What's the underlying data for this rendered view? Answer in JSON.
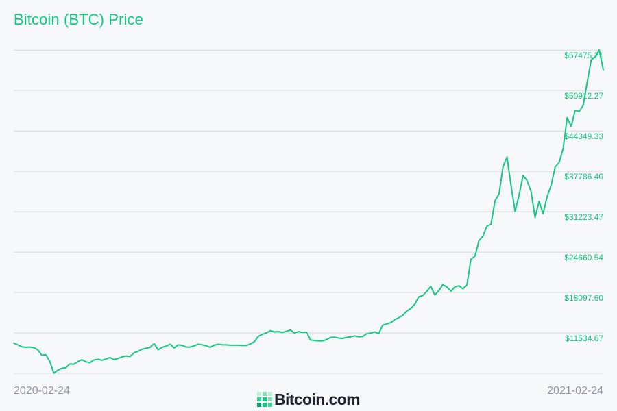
{
  "title": "Bitcoin (BTC) Price",
  "brand": {
    "name": "Bitcoin.com",
    "logo_icon": "bitcoin-com-grid-logo-icon"
  },
  "colors": {
    "accent": "#10c882",
    "line": "#16c784",
    "grid": "#d4d7dc",
    "date_text": "#8e96a3",
    "brand_text": "#1e2331",
    "background": "#f7f8fa"
  },
  "chart_data": {
    "type": "line",
    "title": "Bitcoin (BTC) Price",
    "x_start": "2020-02-24",
    "x_end": "2021-02-24",
    "x_tick_labels": [
      "2020-02-24",
      "2021-02-24"
    ],
    "y_tick_labels": [
      "$57475.21",
      "$50912.27",
      "$44349.33",
      "$37786.40",
      "$31223.47",
      "$24660.54",
      "$18097.60",
      "$11534.67"
    ],
    "y_ticks": [
      57475.21,
      50912.27,
      44349.33,
      37786.4,
      31223.47,
      24660.54,
      18097.6,
      11534.67
    ],
    "ylim": [
      4971.73,
      58500
    ],
    "grid": "horizontal",
    "series": [
      {
        "values": [
          9900,
          9600,
          9300,
          9200,
          9250,
          9150,
          8800,
          7900,
          8000,
          6900,
          4990,
          5500,
          5800,
          5900,
          6500,
          6450,
          6900,
          7200,
          6850,
          6700,
          7150,
          7250,
          7100,
          7300,
          7550,
          7200,
          7400,
          7650,
          7800,
          7700,
          8300,
          8550,
          8900,
          9050,
          9200,
          9800,
          8800,
          9200,
          9400,
          9700,
          9100,
          9600,
          9500,
          9250,
          9250,
          9450,
          9700,
          9600,
          9450,
          9200,
          9550,
          9700,
          9600,
          9600,
          9550,
          9550,
          9550,
          9500,
          9500,
          9750,
          10100,
          11000,
          11300,
          11550,
          11900,
          11700,
          11750,
          11600,
          11800,
          12000,
          11500,
          11750,
          11600,
          11650,
          10400,
          10300,
          10250,
          10250,
          10450,
          10800,
          10850,
          10700,
          10650,
          10800,
          10900,
          11050,
          10900,
          10950,
          11400,
          11500,
          11700,
          11400,
          12800,
          13000,
          13200,
          13700,
          14000,
          14400,
          15100,
          15500,
          16200,
          17400,
          17600,
          18300,
          19100,
          17700,
          18400,
          19400,
          19000,
          18300,
          19000,
          19200,
          18700,
          19300,
          23500,
          24000,
          26500,
          27300,
          28900,
          29200,
          33000,
          34100,
          38500,
          40100,
          35500,
          31300,
          33900,
          37100,
          36300,
          34500,
          30300,
          32900,
          30900,
          33700,
          35500,
          38500,
          39200,
          41500,
          46500,
          45100,
          47700,
          47500,
          48500,
          52300,
          55900,
          56400,
          57500,
          54300
        ]
      }
    ]
  }
}
